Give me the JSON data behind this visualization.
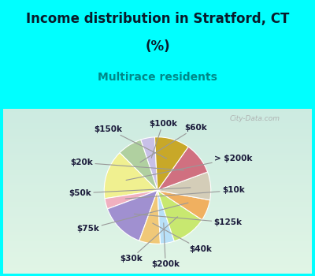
{
  "title_line1": "Income distribution in Stratford, CT",
  "title_line2": "(%)",
  "subtitle": "Multirace residents",
  "watermark": "City-Data.com",
  "labels": [
    "$100k",
    "$60k",
    "> $200k",
    "$10k",
    "$125k",
    "$40k",
    "$200k",
    "$30k",
    "$75k",
    "$50k",
    "$20k",
    "$150k"
  ],
  "values": [
    4,
    7,
    14,
    3,
    13,
    6,
    4,
    10,
    6,
    8,
    9,
    10
  ],
  "colors": [
    "#c8c0e8",
    "#b0d0a0",
    "#f0f090",
    "#f0b0c0",
    "#a090d0",
    "#f0c878",
    "#b8e0f8",
    "#c8e870",
    "#f0b060",
    "#d4cdb8",
    "#d07080",
    "#c8a828"
  ],
  "startangle": 93,
  "title_fontsize": 12,
  "subtitle_fontsize": 10,
  "label_fontsize": 7.5,
  "bg_color": "#00FFFF",
  "chart_bg_top_left": "#e8f5ee",
  "chart_bg_bottom_right": "#c0e8dc",
  "label_color": "#1a1a3a"
}
